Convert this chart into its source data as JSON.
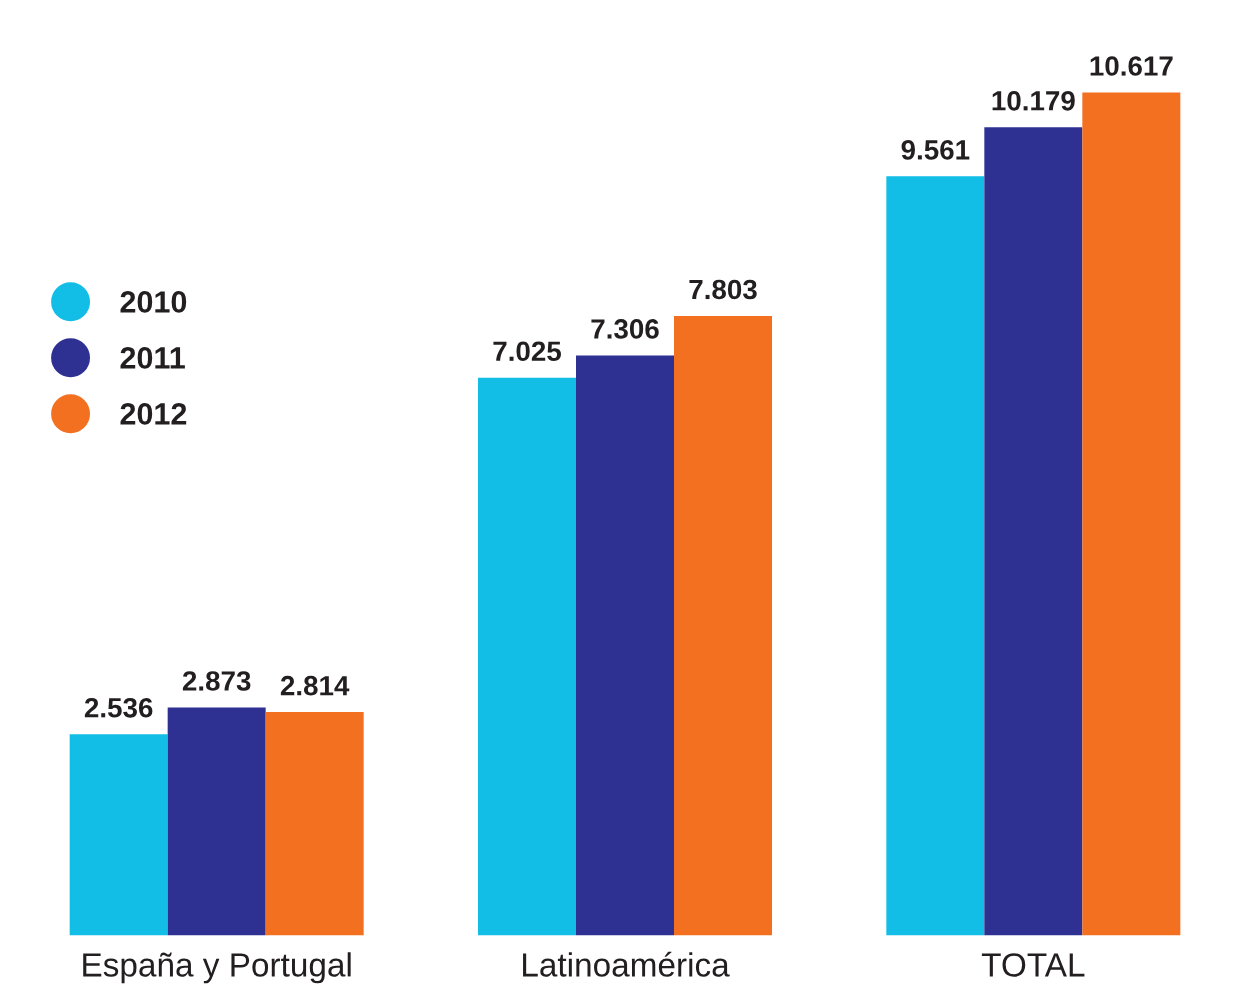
{
  "chart_data": {
    "type": "bar",
    "categories": [
      "España y Portugal",
      "Latinoamérica",
      "TOTAL"
    ],
    "series": [
      {
        "name": "2010",
        "color": "#12bde6",
        "values": [
          2.536,
          7.025,
          9.561
        ]
      },
      {
        "name": "2011",
        "color": "#2e3192",
        "values": [
          2.873,
          7.306,
          10.179
        ]
      },
      {
        "name": "2012",
        "color": "#f37021",
        "values": [
          2.814,
          7.803,
          10.617
        ]
      }
    ],
    "data_labels": true,
    "legend": "top left",
    "grid": false,
    "tick_labels": "x"
  }
}
